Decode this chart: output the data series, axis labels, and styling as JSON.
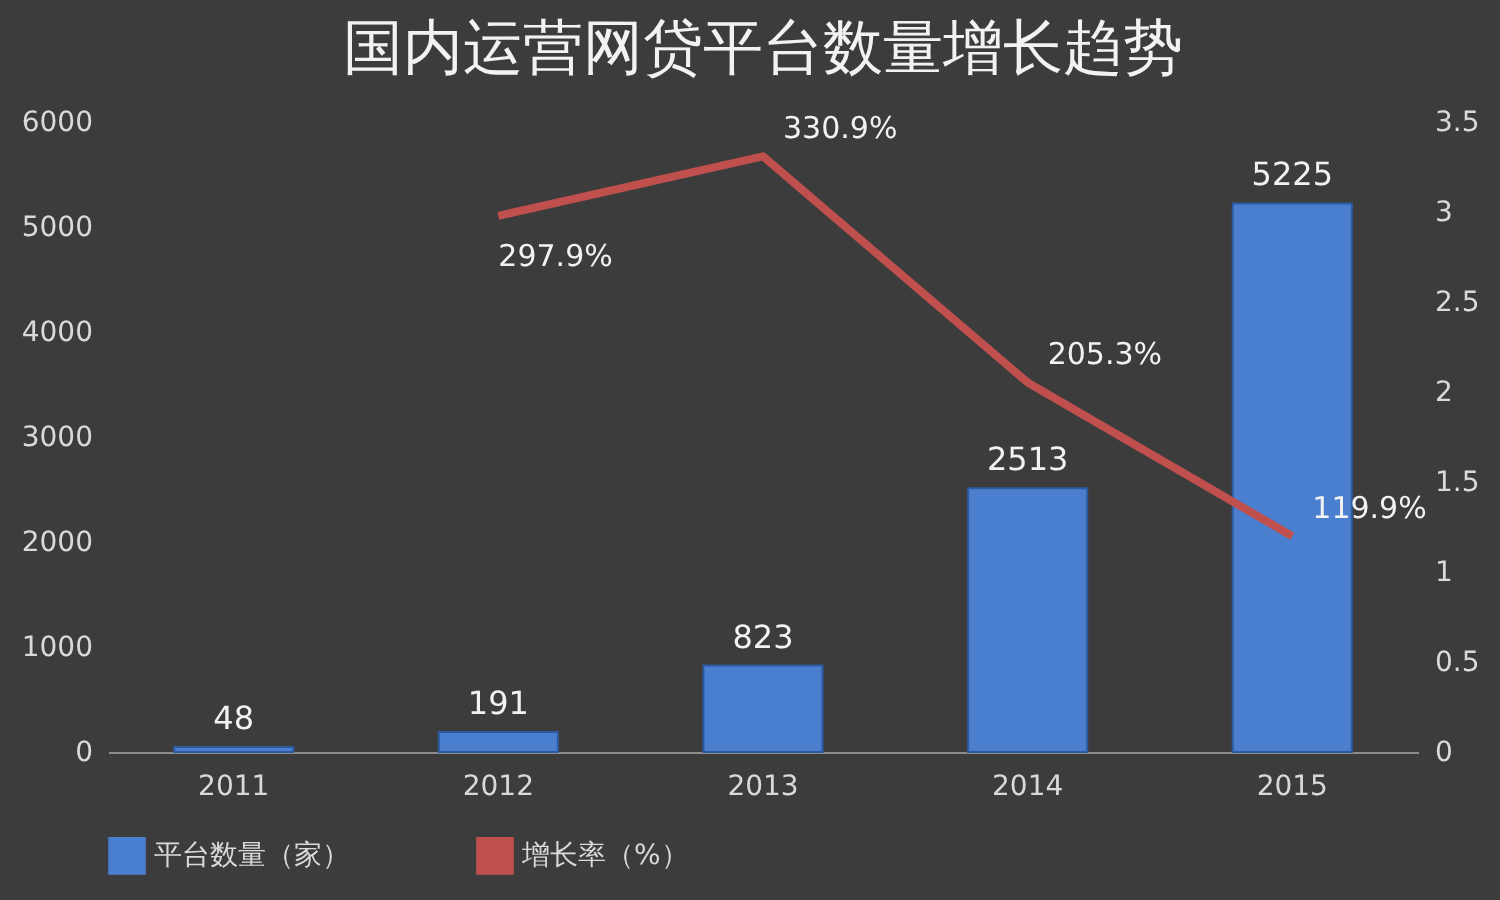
{
  "chart_data": {
    "type": "bar",
    "title": "国内运营网贷平台数量增长趋势",
    "categories": [
      "2011",
      "2012",
      "2013",
      "2014",
      "2015"
    ],
    "series": [
      {
        "name": "平台数量（家）",
        "color": "#4a7fd0",
        "values": [
          48,
          191,
          823,
          2513,
          5225
        ],
        "value_labels": [
          "48",
          "191",
          "823",
          "2513",
          "5225"
        ]
      },
      {
        "name": "增长率（%）",
        "type": "line",
        "axis": "y2",
        "color": "#c0504d",
        "values": [
          null,
          2.979,
          3.309,
          2.053,
          1.199
        ],
        "value_labels": [
          null,
          "297.9%",
          "330.9%",
          "205.3%",
          "119.9%"
        ]
      }
    ],
    "ylim": [
      0,
      6000
    ],
    "yticks": [
      0,
      1000,
      2000,
      3000,
      4000,
      5000,
      6000
    ],
    "y2lim": [
      0,
      3.5
    ],
    "y2ticks": [
      0,
      0.5,
      1,
      1.5,
      2,
      2.5,
      3,
      3.5
    ],
    "legend": "bottom"
  }
}
